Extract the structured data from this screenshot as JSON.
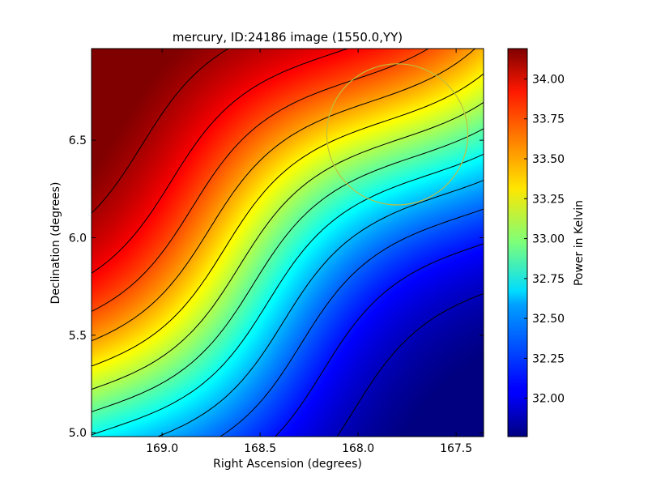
{
  "chart_data": {
    "type": "heatmap",
    "title": "mercury, ID:24186 image (1550.0,YY)",
    "xlabel": "Right Ascension (degrees)",
    "ylabel": "Declination (degrees)",
    "colorbar_label": "Power in Kelvin",
    "colormap": "jet",
    "xlim": [
      169.36,
      167.36
    ],
    "ylim": [
      4.98,
      6.97
    ],
    "x_ticks": [
      {
        "value": 169.0,
        "label": "169.0"
      },
      {
        "value": 168.5,
        "label": "168.5"
      },
      {
        "value": 168.0,
        "label": "168.0"
      },
      {
        "value": 167.5,
        "label": "167.5"
      }
    ],
    "y_ticks": [
      {
        "value": 5.0,
        "label": "5.0"
      },
      {
        "value": 5.5,
        "label": "5.5"
      },
      {
        "value": 6.0,
        "label": "6.0"
      },
      {
        "value": 6.5,
        "label": "6.5"
      }
    ],
    "value_range": [
      31.76,
      34.19
    ],
    "colorbar_ticks": [
      {
        "value": 34.0,
        "label": "34.00"
      },
      {
        "value": 33.75,
        "label": "33.75"
      },
      {
        "value": 33.5,
        "label": "33.50"
      },
      {
        "value": 33.25,
        "label": "33.25"
      },
      {
        "value": 33.0,
        "label": "33.00"
      },
      {
        "value": 32.75,
        "label": "32.75"
      },
      {
        "value": 32.5,
        "label": "32.50"
      },
      {
        "value": 32.25,
        "label": "32.25"
      },
      {
        "value": 32.0,
        "label": "32.00"
      }
    ],
    "contour_levels": [
      31.9,
      32.1,
      32.3,
      32.5,
      32.7,
      32.9,
      33.1,
      33.3,
      33.5,
      33.7,
      33.9,
      34.1
    ],
    "peak": {
      "ra": 169.2,
      "dec": 6.6,
      "value": 34.19
    },
    "trough": {
      "ra": 167.7,
      "dec": 5.1,
      "value": 31.76
    },
    "gradient_direction": "upper-left to lower-right",
    "beam_circle": {
      "ra": 167.8,
      "dec": 6.53,
      "radius_deg": 0.36,
      "color": "#bfbf3f"
    }
  }
}
